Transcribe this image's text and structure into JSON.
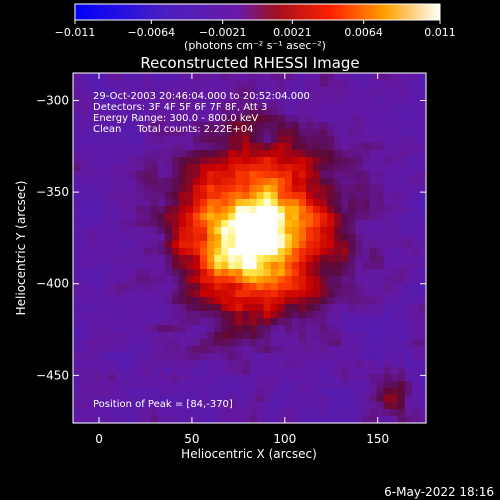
{
  "chart_data": {
    "type": "heatmap",
    "title": "Reconstructed RHESSI Image",
    "xlabel": "Heliocentric X (arcsec)",
    "ylabel": "Heliocentric Y (arcsec)",
    "xlim": [
      -14,
      176
    ],
    "ylim": [
      -476,
      -285
    ],
    "xticks": [
      0,
      50,
      100,
      150
    ],
    "xtick_labels": [
      "0",
      "50",
      "100",
      "150"
    ],
    "yticks": [
      -300,
      -350,
      -400,
      -450
    ],
    "ytick_labels": [
      "−300",
      "−350",
      "−400",
      "−450"
    ],
    "colorbar": {
      "range": [
        -0.011,
        0.011
      ],
      "ticks": [
        -0.011,
        -0.0064,
        -0.0021,
        0.0021,
        0.0064,
        0.011
      ],
      "tick_labels": [
        "−0.011",
        "−0.0064",
        "−0.0021",
        "0.0021",
        "0.0064",
        "0.011"
      ],
      "unit_label": "(photons cm⁻² s⁻¹ asec⁻²)"
    },
    "colors": [
      "#0000ff",
      "#6a1aa6",
      "#ff0000",
      "#ff8800",
      "#ffff88",
      "#ffffff"
    ],
    "annotations": {
      "time_range": "29-Oct-2003 20:46:04.000 to 20:52:04.000",
      "detectors": "Detectors: 3F 4F 5F 6F 7F 8F, Att 3",
      "energy": "Energy Range: 300.0 - 800.0 keV",
      "clean": "Clean     Total counts: 2.22E+04",
      "peak": "Position of Peak = [84,-370]"
    },
    "peak": {
      "x": 84,
      "y": -370,
      "value": 0.011
    },
    "grid": false
  },
  "footer": {
    "date": "6-May-2022 18:16"
  }
}
